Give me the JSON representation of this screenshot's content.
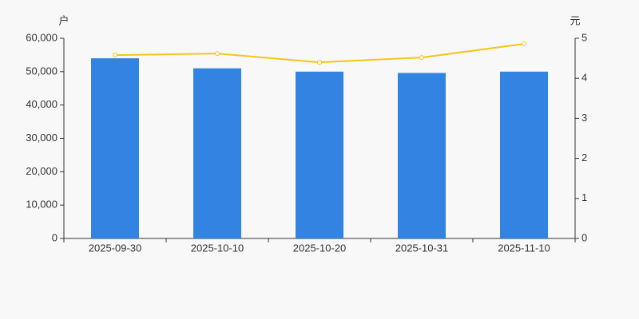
{
  "chart_data": {
    "type": "bar-line",
    "y_label": "户",
    "y2_label": "元",
    "categories": [
      "2025-09-30",
      "2025-10-10",
      "2025-10-20",
      "2025-10-31",
      "2025-11-10"
    ],
    "series": [
      {
        "type": "bar",
        "color": "#3383e2",
        "values": [
          54000,
          51000,
          50000,
          49600,
          50000
        ]
      },
      {
        "type": "line",
        "axis": "y2",
        "color": "#f5c518",
        "values": [
          4.58,
          4.62,
          4.4,
          4.52,
          4.86
        ]
      }
    ],
    "ylim": [
      0,
      60000
    ],
    "yticks": [
      0,
      {
        "value": 10000,
        "label": "10,000"
      },
      {
        "value": 20000,
        "label": "20,000"
      },
      {
        "value": 30000,
        "label": "30,000"
      },
      {
        "value": 40000,
        "label": "40,000"
      },
      {
        "value": 50000,
        "label": "50,000"
      },
      {
        "value": 60000,
        "label": "60,000"
      }
    ],
    "y2lim": [
      0,
      5
    ],
    "y2ticks": [
      0,
      1,
      2,
      3,
      4,
      5
    ]
  }
}
